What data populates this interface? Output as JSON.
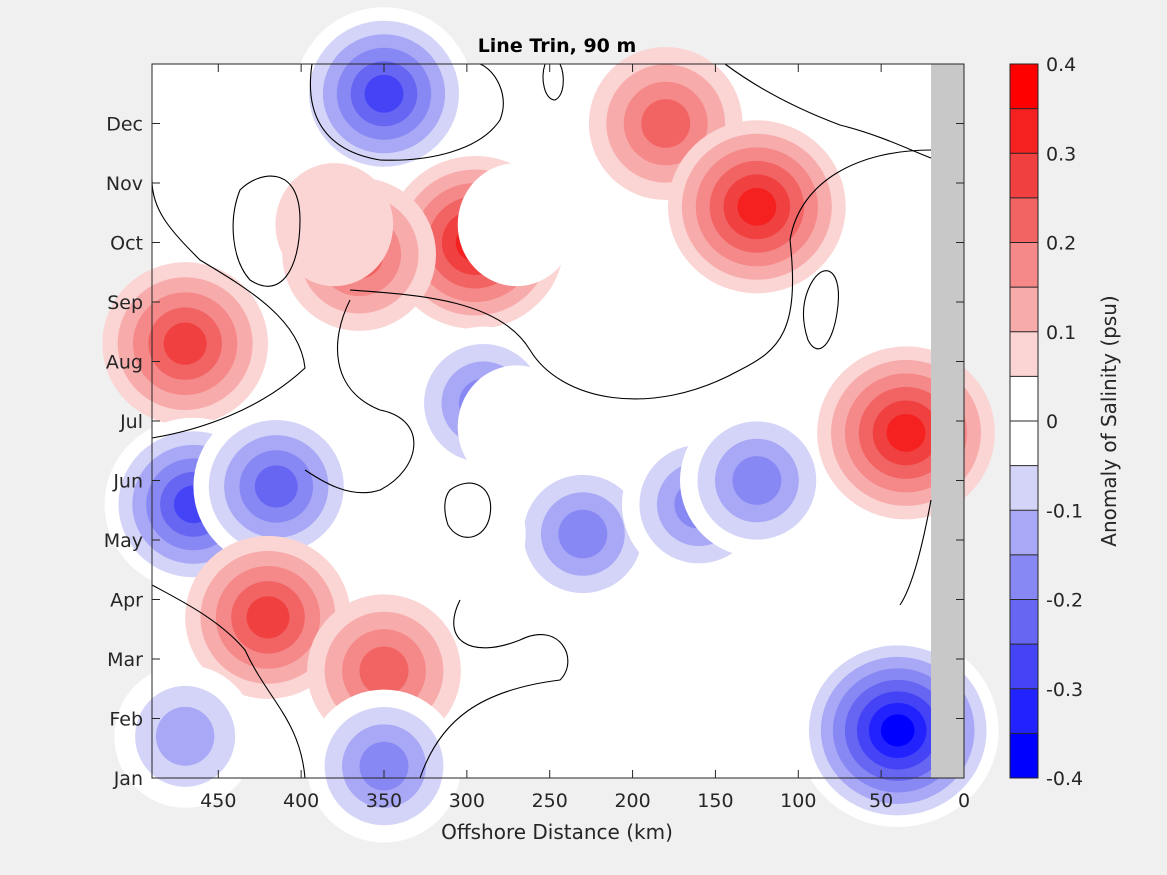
{
  "chart_data": {
    "type": "heatmap",
    "title": "Line Trin, 90 m",
    "xlabel": "Offshore Distance (km)",
    "ylabel": "",
    "xlim": [
      490,
      0
    ],
    "x_reversed": true,
    "x_ticks": [
      450,
      400,
      350,
      300,
      250,
      200,
      150,
      100,
      50,
      0
    ],
    "x_tick_labels": [
      "450",
      "400",
      "350",
      "300",
      "250",
      "200",
      "150",
      "100",
      "50",
      "0"
    ],
    "ylim": [
      1,
      13
    ],
    "y_ticks": [
      1,
      2,
      3,
      4,
      5,
      6,
      7,
      8,
      9,
      10,
      11,
      12
    ],
    "y_tick_labels": [
      "Jan",
      "Feb",
      "Mar",
      "Apr",
      "May",
      "Jun",
      "Jul",
      "Aug",
      "Sep",
      "Oct",
      "Nov",
      "Dec"
    ],
    "no_data_region": {
      "x_from": 20,
      "x_to": 0,
      "color": "#c8c8c8"
    },
    "zero_contour": true,
    "colorbar": {
      "label": "Anomaly of Salinity (psu)",
      "range": [
        -0.4,
        0.4
      ],
      "step": 0.05,
      "ticks": [
        -0.4,
        -0.3,
        -0.2,
        -0.1,
        0,
        0.1,
        0.2,
        0.3,
        0.4
      ],
      "tick_labels": [
        "-0.4",
        "-0.3",
        "-0.2",
        "-0.1",
        "0",
        "0.1",
        "0.2",
        "0.3",
        "0.4"
      ],
      "colors": [
        "#0000ff",
        "#2222ff",
        "#4444f6",
        "#6666f2",
        "#8888f4",
        "#a8a8f6",
        "#d4d4f8",
        "#ffffff",
        "#ffffff",
        "#fbd4d4",
        "#f8abab",
        "#f58888",
        "#f26464",
        "#f04040",
        "#f52020",
        "#ff0000"
      ]
    },
    "features": [
      {
        "x": 470,
        "y": 8.3,
        "value": 0.25
      },
      {
        "x": 465,
        "y": 5.6,
        "value": -0.3
      },
      {
        "x": 415,
        "y": 5.9,
        "value": -0.25
      },
      {
        "x": 350,
        "y": 12.5,
        "value": -0.3
      },
      {
        "x": 295,
        "y": 10.0,
        "value": 0.28
      },
      {
        "x": 290,
        "y": 7.3,
        "value": -0.2
      },
      {
        "x": 365,
        "y": 9.8,
        "value": 0.2
      },
      {
        "x": 180,
        "y": 12.0,
        "value": 0.22
      },
      {
        "x": 125,
        "y": 10.6,
        "value": 0.28
      },
      {
        "x": 230,
        "y": 5.1,
        "value": -0.22
      },
      {
        "x": 160,
        "y": 5.6,
        "value": -0.22
      },
      {
        "x": 125,
        "y": 6.0,
        "value": -0.2
      },
      {
        "x": 35,
        "y": 6.8,
        "value": 0.3
      },
      {
        "x": 40,
        "y": 1.8,
        "value": -0.38
      },
      {
        "x": 420,
        "y": 3.7,
        "value": 0.25
      },
      {
        "x": 350,
        "y": 2.8,
        "value": 0.2
      },
      {
        "x": 270,
        "y": 6.9,
        "value": 0
      },
      {
        "x": 300,
        "y": 5.1,
        "value": 0
      },
      {
        "x": 270,
        "y": 10.3,
        "value": 0
      },
      {
        "x": 380,
        "y": 10.3,
        "value": 0.05
      },
      {
        "x": 470,
        "y": 1.7,
        "value": -0.15
      },
      {
        "x": 350,
        "y": 1.2,
        "value": -0.2
      }
    ]
  }
}
